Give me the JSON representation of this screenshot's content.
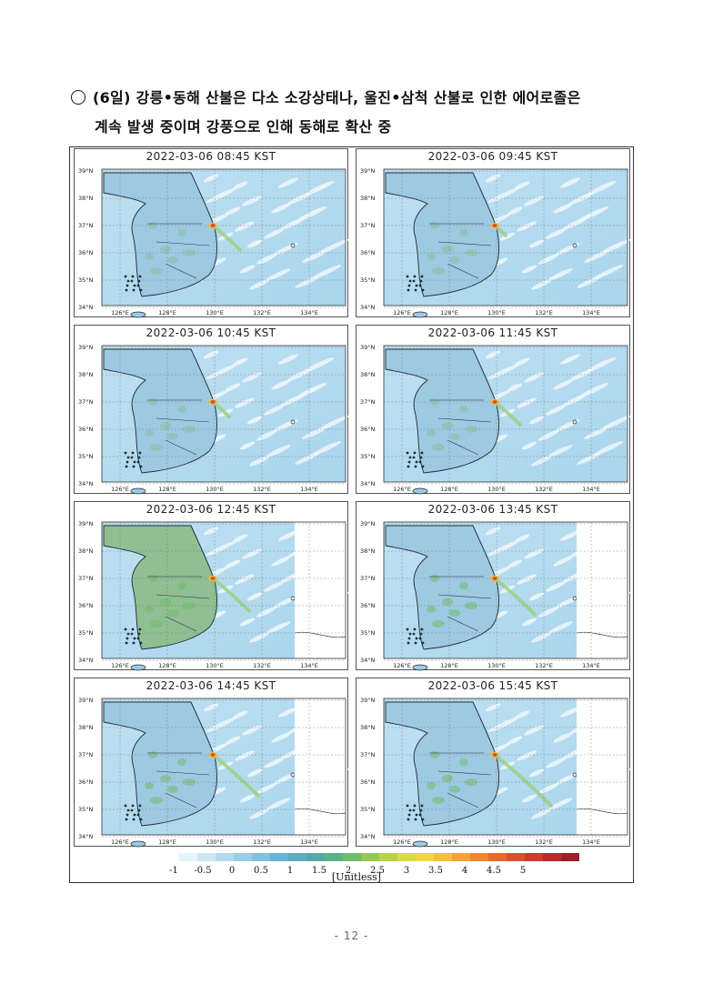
{
  "heading": {
    "line1": "(6일) 강릉•동해 산불은 다소 소강상태나, 울진•삼척 산불로 인한 에어로졸은",
    "line2": "계속 발생 중이며 강풍으로 인해 동해로 확산 중"
  },
  "panels": [
    {
      "title": "2022-03-06 08:45 KST"
    },
    {
      "title": "2022-03-06 09:45 KST"
    },
    {
      "title": "2022-03-06 10:45 KST"
    },
    {
      "title": "2022-03-06 11:45 KST"
    },
    {
      "title": "2022-03-06 12:45 KST"
    },
    {
      "title": "2022-03-06 13:45 KST"
    },
    {
      "title": "2022-03-06 14:45 KST"
    },
    {
      "title": "2022-03-06 15:45 KST"
    }
  ],
  "axes": {
    "lat_labels": [
      "39°N",
      "38°N",
      "37°N",
      "36°N",
      "35°N",
      "34°N"
    ],
    "lon_labels": [
      "126°E",
      "128°E",
      "130°E",
      "132°E",
      "134°E"
    ]
  },
  "legend": {
    "ticks": [
      "-1",
      "-0.5",
      "0",
      "0.5",
      "1",
      "1.5",
      "2",
      "2.5",
      "3",
      "3.5",
      "4",
      "4.5",
      "5"
    ],
    "label": "[Unitless]",
    "colors": [
      "#ffffff",
      "#e6f3fb",
      "#cde7f5",
      "#b3daee",
      "#99cde8",
      "#7fc1e2",
      "#66b4d8",
      "#5aaec3",
      "#52aaa6",
      "#58b28a",
      "#6fbd6a",
      "#93c857",
      "#b8d24a",
      "#d8d943",
      "#efd640",
      "#f5c03c",
      "#f3a338",
      "#ee8634",
      "#e66a30",
      "#db502d",
      "#cc3a2c",
      "#b8292b",
      "#9e1f2b"
    ]
  },
  "page_number": "- 12 -"
}
